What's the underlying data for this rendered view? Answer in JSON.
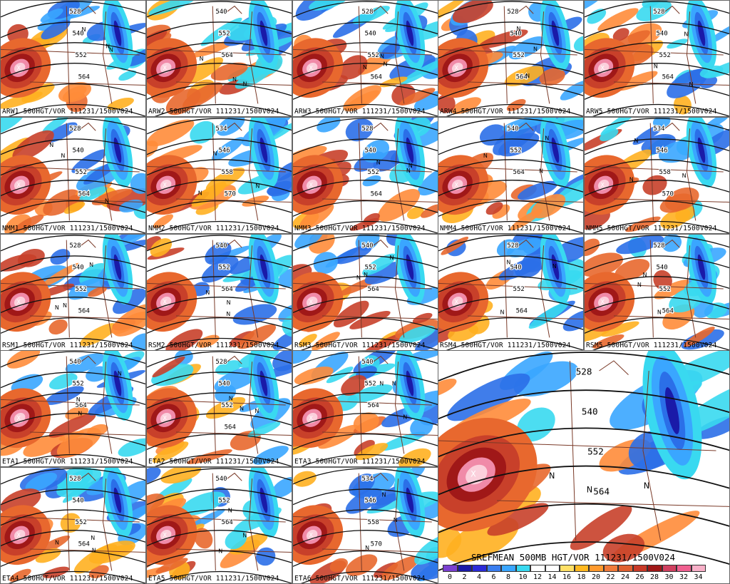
{
  "panels": [
    {
      "label": "ARW1 500HGT/VOR 111231/1500V024",
      "contours": [
        "528",
        "540",
        "552",
        "564"
      ]
    },
    {
      "label": "ARW2 500HGT/VOR 111231/1500V024",
      "contours": [
        "540",
        "552",
        "564"
      ]
    },
    {
      "label": "ARW3 500HGT/VOR 111231/1500V024",
      "contours": [
        "528",
        "540",
        "552",
        "564"
      ]
    },
    {
      "label": "ARW4 500HGT/VOR 111231/1500V024",
      "contours": [
        "528",
        "540",
        "552",
        "564"
      ]
    },
    {
      "label": "ARW5 500HGT/VOR 111231/1500V024",
      "contours": [
        "528",
        "540",
        "552",
        "564"
      ]
    },
    {
      "label": "NMM1 500HGT/VOR 111231/1500V024",
      "contours": [
        "528",
        "540",
        "552",
        "564"
      ]
    },
    {
      "label": "NMM2 500HGT/VOR 111231/1500V024",
      "contours": [
        "534",
        "546",
        "558",
        "570"
      ]
    },
    {
      "label": "NMM3 500HGT/VOR 111231/1500V024",
      "contours": [
        "528",
        "540",
        "552",
        "564"
      ]
    },
    {
      "label": "NMM4 500HGT/VOR 111231/1500V024",
      "contours": [
        "540",
        "552",
        "564"
      ]
    },
    {
      "label": "NMM5 500HGT/VOR 111231/1500V024",
      "contours": [
        "534",
        "546",
        "558",
        "570"
      ]
    },
    {
      "label": "RSM1 500HGT/VOR 111231/1500V024",
      "contours": [
        "528",
        "540",
        "552",
        "564"
      ]
    },
    {
      "label": "RSM2 500HGT/VOR 111231/1500V024",
      "contours": [
        "540",
        "552",
        "564"
      ]
    },
    {
      "label": "RSM3 500HGT/VOR 111231/1500V024",
      "contours": [
        "540",
        "552",
        "564"
      ]
    },
    {
      "label": "RSM4 500HGT/VOR 111231/1500V024",
      "contours": [
        "528",
        "540",
        "552",
        "564"
      ]
    },
    {
      "label": "RSM5 500HGT/VOR 111231/1500V024",
      "contours": [
        "528",
        "540",
        "552",
        "564"
      ]
    },
    {
      "label": "ETA1 500HGT/VOR 111231/1500V024",
      "contours": [
        "540",
        "552",
        "564"
      ]
    },
    {
      "label": "ETA2 500HGT/VOR 111231/1500V024",
      "contours": [
        "528",
        "540",
        "552",
        "564"
      ]
    },
    {
      "label": "ETA3 500HGT/VOR 111231/1500V024",
      "contours": [
        "540",
        "552",
        "564"
      ]
    },
    {
      "label": "ETA4 500HGT/VOR 111231/1500V024",
      "contours": [
        "528",
        "540",
        "552",
        "564"
      ]
    },
    {
      "label": "ETA5 500HGT/VOR 111231/1500V024",
      "contours": [
        "540",
        "552",
        "564"
      ]
    },
    {
      "label": "ETA6 500HGT/VOR 111231/1500V024",
      "contours": [
        "534",
        "546",
        "558",
        "570"
      ]
    }
  ],
  "mean_panel": {
    "title": "SREFMEAN 500MB HGT/VOR 111231/1500V024",
    "contours": [
      "528",
      "540",
      "552",
      "564"
    ]
  },
  "legend": {
    "ticks": [
      "0",
      "2",
      "4",
      "6",
      "8",
      "10",
      "12",
      "14",
      "16",
      "18",
      "20",
      "22",
      "24",
      "26",
      "28",
      "30",
      "32",
      "34"
    ],
    "colors": [
      "#7a3fd0",
      "#1a1aa8",
      "#2b2bd8",
      "#3a7ef0",
      "#3aa6ff",
      "#39d9f0",
      "#ffffff",
      "#ffffff",
      "#ffe066",
      "#ffb820",
      "#ff9a2e",
      "#f07a3a",
      "#e06030",
      "#c83a28",
      "#a01818",
      "#d04060",
      "#f06090",
      "#f8b0c8"
    ]
  },
  "colors": {
    "contour": "#111111",
    "border": "#7a3a28",
    "warm": [
      "#ffb020",
      "#ff8c3a",
      "#e8682e",
      "#c8402a",
      "#a01818",
      "#f08aa8",
      "#fbd0dc"
    ],
    "cool": [
      "#39d9f0",
      "#3aa6ff",
      "#2b6fe8",
      "#1a1aa8",
      "#7a3fd0"
    ]
  }
}
